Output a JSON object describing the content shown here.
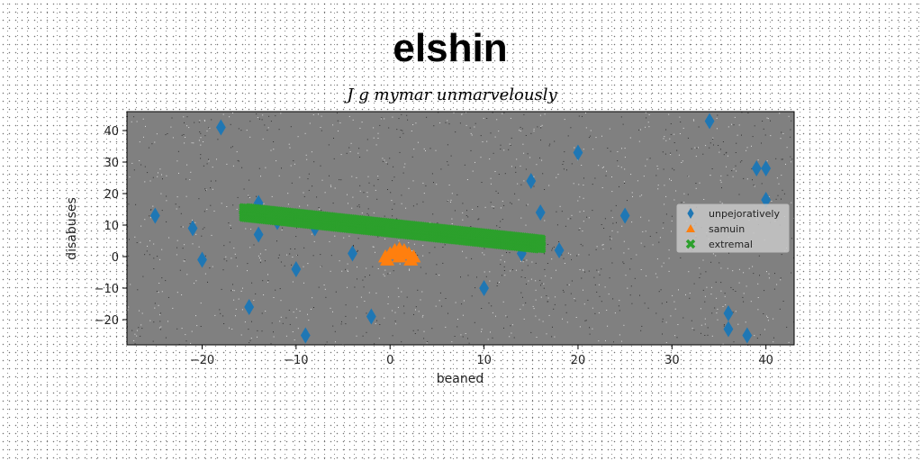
{
  "chart_data": {
    "type": "scatter",
    "title": "elshin",
    "subtitle": "J g mymar unmarvelously",
    "xlabel": "beaned",
    "ylabel": "disabuses",
    "xlim": [
      -28,
      43
    ],
    "ylim": [
      -28,
      46
    ],
    "xticks": [
      -20,
      -10,
      0,
      10,
      20,
      30,
      40
    ],
    "yticks": [
      -20,
      -10,
      0,
      10,
      20,
      30,
      40
    ],
    "grid": false,
    "legend": "center-right",
    "plot_background": "#808080",
    "series": [
      {
        "name": "unpejoratively",
        "marker": "diamond",
        "color": "#1f77b4",
        "points": [
          [
            -25,
            13
          ],
          [
            -21,
            9
          ],
          [
            -20,
            -1
          ],
          [
            -18,
            41
          ],
          [
            -15,
            -16
          ],
          [
            -14,
            17
          ],
          [
            -14,
            7
          ],
          [
            -12,
            11
          ],
          [
            -10,
            -4
          ],
          [
            -9,
            -25
          ],
          [
            -8,
            9
          ],
          [
            -4,
            1
          ],
          [
            -2,
            -19
          ],
          [
            10,
            -10
          ],
          [
            14,
            1
          ],
          [
            15,
            24
          ],
          [
            16,
            14
          ],
          [
            18,
            2
          ],
          [
            20,
            33
          ],
          [
            25,
            13
          ],
          [
            34,
            43
          ],
          [
            36,
            -18
          ],
          [
            36,
            -23
          ],
          [
            38,
            -25
          ],
          [
            39,
            28
          ],
          [
            40,
            28
          ],
          [
            40,
            18
          ]
        ]
      },
      {
        "name": "samuin",
        "marker": "triangle",
        "color": "#ff7f0e",
        "points": [
          [
            -0.5,
            0
          ],
          [
            0,
            1
          ],
          [
            0.5,
            2
          ],
          [
            1,
            2.5
          ],
          [
            1.5,
            2
          ],
          [
            2,
            1
          ],
          [
            2.5,
            0
          ],
          [
            -0.3,
            -1
          ],
          [
            1,
            0
          ],
          [
            2.2,
            -1
          ]
        ]
      },
      {
        "name": "extremal",
        "marker": "x",
        "color": "#2ca02c",
        "line": {
          "x0": -15.5,
          "y0": 14,
          "x1": 16,
          "y1": 4
        }
      }
    ]
  }
}
